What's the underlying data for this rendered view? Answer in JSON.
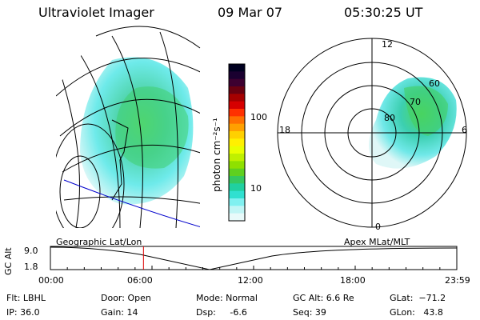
{
  "header": {
    "title": "Ultraviolet Imager",
    "date": "09 Mar 07",
    "time": "05:30:25 UT"
  },
  "colorbar": {
    "unit_label": "photon cm⁻²s⁻¹",
    "ticks": [
      "100",
      "10"
    ],
    "colors": [
      "#000020",
      "#1a0030",
      "#3d0030",
      "#6a0010",
      "#a50000",
      "#d60000",
      "#ff3000",
      "#ff7000",
      "#ffa000",
      "#ffd000",
      "#fff000",
      "#e8ff00",
      "#bff000",
      "#8fe000",
      "#5fd020",
      "#35c860",
      "#20d0a0",
      "#30e0d0",
      "#80f0f0",
      "#c0f5f5",
      "#e8fafa"
    ]
  },
  "polar": {
    "mlt_labels": {
      "top": "12",
      "left": "18",
      "right": "6",
      "bottom": "0"
    },
    "lat_labels": [
      "60",
      "70",
      "80"
    ]
  },
  "timeline": {
    "ylabel": "GC Alt",
    "yticks": [
      "9.0",
      "1.8"
    ],
    "left_title": "Geographic Lat/Lon",
    "right_title": "Apex  MLat/MLT",
    "xticks": [
      "00:00",
      "06:00",
      "12:00",
      "18:00",
      "23:59"
    ],
    "marker_time_fraction": 0.229
  },
  "footer": {
    "filter": "Flt: LBHL",
    "ip": "IP: 36.0",
    "door": "Door: Open",
    "gain": "Gain: 14",
    "mode": "Mode: Normal",
    "dsp": "Dsp:     -6.6",
    "gc_alt": "GC Alt: 6.6 Re",
    "seq": "Seq: 39",
    "glat": "GLat:  −71.2",
    "glon": "GLon:   43.8"
  }
}
